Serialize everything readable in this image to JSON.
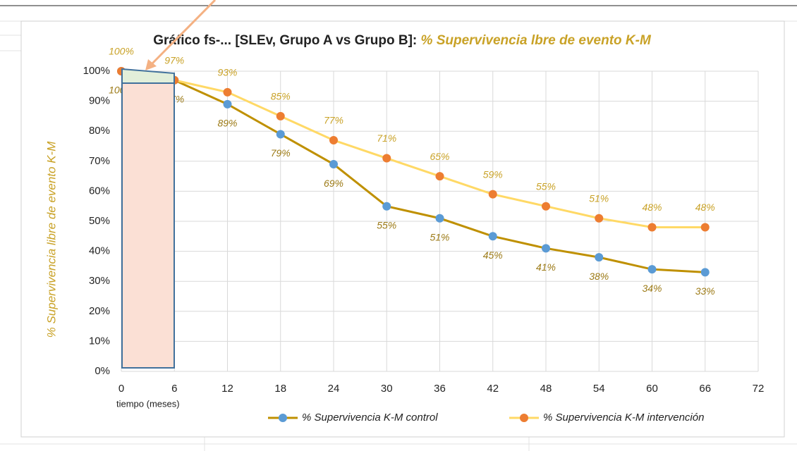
{
  "chart_data": {
    "type": "line",
    "title": "Gráfico fs-... [SLEv, Grupo A vs Grupo B]: ",
    "title_highlight": "% Supervivencia lbre de evento K-M",
    "y_label": "% Supervivencia libre de evento K-M",
    "x_label": "tiempo (meses)",
    "x": [
      0,
      6,
      12,
      18,
      24,
      30,
      36,
      42,
      48,
      54,
      60,
      66
    ],
    "xlim": [
      0,
      72
    ],
    "xticks": [
      0,
      6,
      12,
      18,
      24,
      30,
      36,
      42,
      48,
      54,
      60,
      66,
      72
    ],
    "ylim": [
      0,
      100
    ],
    "yticks": [
      {
        "value": 0,
        "label": "0%"
      },
      {
        "value": 10,
        "label": "10%"
      },
      {
        "value": 20,
        "label": "20%"
      },
      {
        "value": 30,
        "label": "30%"
      },
      {
        "value": 40,
        "label": "40%"
      },
      {
        "value": 50,
        "label": "50%"
      },
      {
        "value": 60,
        "label": "60%"
      },
      {
        "value": 70,
        "label": "70%"
      },
      {
        "value": 80,
        "label": "80%"
      },
      {
        "value": 90,
        "label": "90%"
      },
      {
        "value": 100,
        "label": "100%"
      }
    ],
    "grid": true,
    "legend": "bottom",
    "series": [
      {
        "name": "% Supervivencia K-M control",
        "color": "#bf9000",
        "marker_color": "#5b9bd5",
        "label_color": "#9c7a16",
        "label_position": "below",
        "values": [
          100,
          97,
          89,
          79,
          69,
          55,
          51,
          45,
          41,
          38,
          34,
          33
        ],
        "value_labels": [
          "100%",
          "97%",
          "89%",
          "79%",
          "69%",
          "55%",
          "51%",
          "45%",
          "41%",
          "38%",
          "34%",
          "33%"
        ]
      },
      {
        "name": "% Supervivencia K-M intervención",
        "color": "#ffd966",
        "marker_color": "#ed7d31",
        "label_color": "#c9a227",
        "label_position": "above",
        "values": [
          100,
          97,
          93,
          85,
          77,
          71,
          65,
          59,
          55,
          51,
          48,
          48
        ],
        "value_labels": [
          "100%",
          "97%",
          "93%",
          "85%",
          "77%",
          "71%",
          "65%",
          "59%",
          "55%",
          "51%",
          "48%",
          "48%"
        ]
      }
    ]
  }
}
